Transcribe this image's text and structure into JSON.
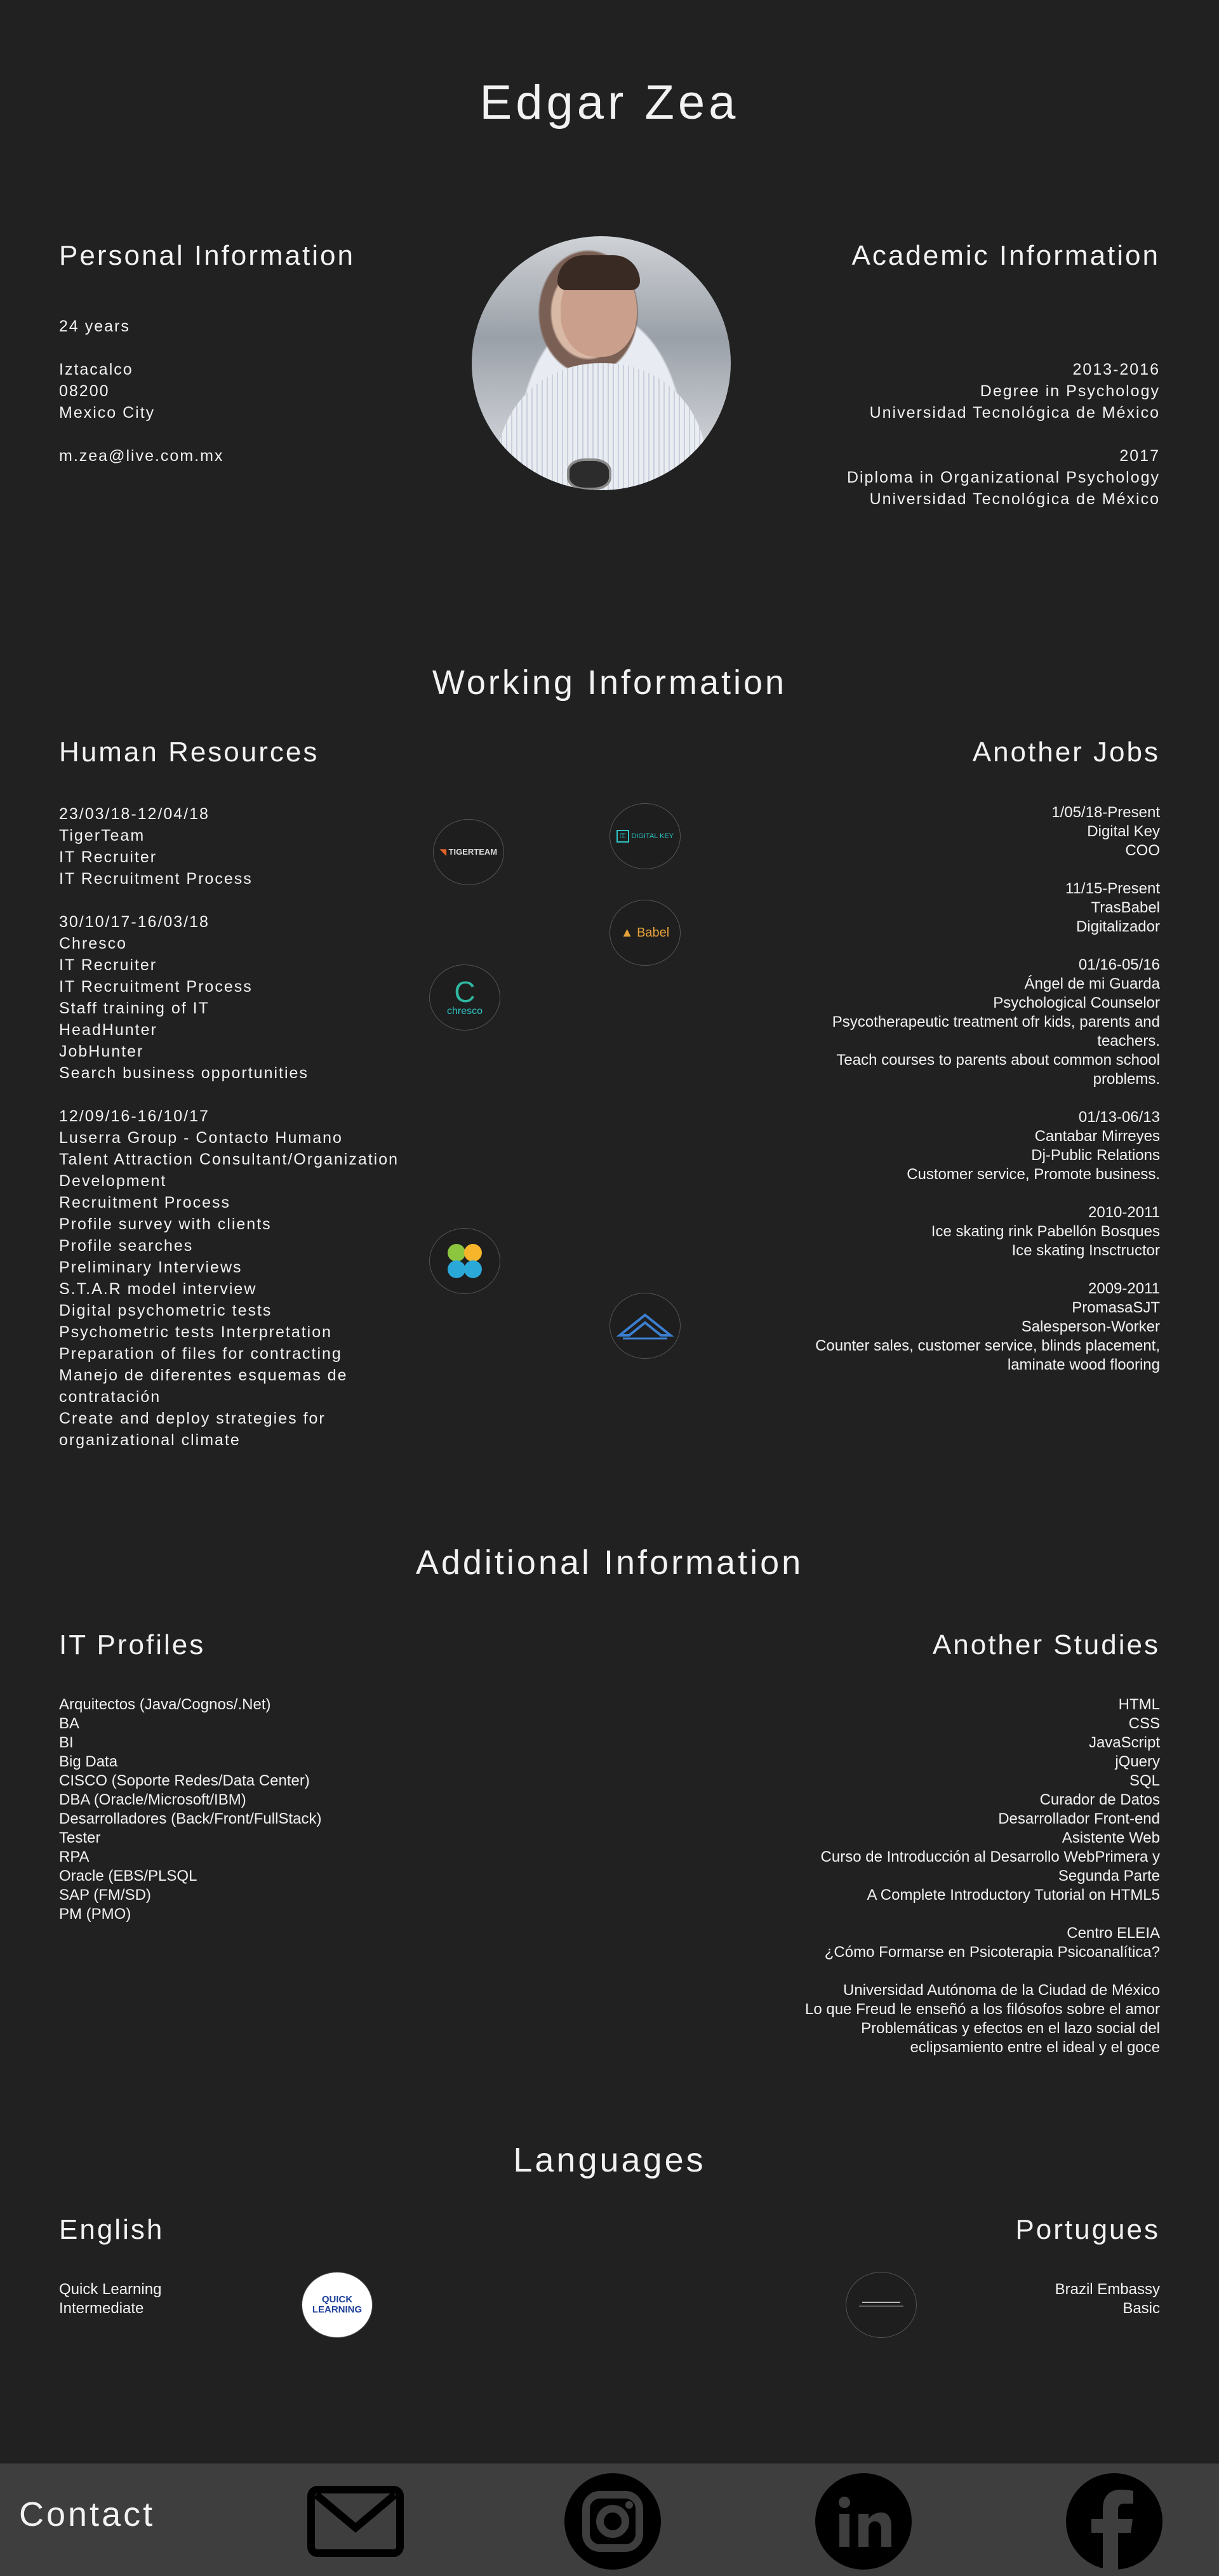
{
  "header": {
    "name": "Edgar Zea"
  },
  "personal": {
    "title": "Personal Information",
    "age": "24 years",
    "address": [
      "Iztacalco",
      "08200",
      "Mexico City"
    ],
    "email": "m.zea@live.com.mx"
  },
  "academic": {
    "title": "Academic Information",
    "entries": [
      {
        "years": "2013-2016",
        "degree": "Degree in Psychology",
        "school": "Universidad Tecnológica de México"
      },
      {
        "years": "2017",
        "degree": "Diploma in Organizational Psychology",
        "school": "Universidad Tecnológica de México"
      }
    ]
  },
  "working": {
    "title": "Working Information",
    "hr_title": "Human Resources",
    "hr_jobs": [
      {
        "lines": [
          "23/03/18-12/04/18",
          "TigerTeam",
          "IT Recruiter",
          "IT Recruitment Process"
        ]
      },
      {
        "lines": [
          "30/10/17-16/03/18",
          "Chresco",
          "IT Recruiter",
          "IT Recruitment Process",
          "Staff training of IT",
          "HeadHunter",
          "JobHunter",
          "Search business opportunities"
        ]
      },
      {
        "lines": [
          "12/09/16-16/10/17",
          "Luserra Group - Contacto Humano",
          "Talent Attraction Consultant/Organization",
          "Development",
          "Recruitment Process",
          "Profile survey with clients",
          "Profile searches",
          "Preliminary Interviews",
          "S.T.A.R model interview",
          "Digital psychometric tests",
          "Psychometric tests Interpretation",
          "Preparation of files for contracting",
          "Manejo de diferentes esquemas de",
          "contratación",
          "Create and deploy strategies for",
          "organizational climate"
        ]
      }
    ],
    "other_title": "Another Jobs",
    "other_jobs": [
      {
        "lines": [
          "1/05/18-Present",
          "Digital Key",
          "COO"
        ]
      },
      {
        "lines": [
          "11/15-Present",
          "TrasBabel",
          "Digitalizador"
        ]
      },
      {
        "lines": [
          "01/16-05/16",
          "Ángel de mi Guarda",
          "Psychological Counselor",
          "Psycotherapeutic treatment ofr kids, parents and",
          "teachers.",
          "Teach courses to parents about common school",
          "problems."
        ]
      },
      {
        "lines": [
          "01/13-06/13",
          "Cantabar Mirreyes",
          "Dj-Public Relations",
          "Customer service, Promote business."
        ]
      },
      {
        "lines": [
          "2010-2011",
          "Ice skating rink Pabellón Bosques",
          "Ice skating Insctructor"
        ]
      },
      {
        "lines": [
          "2009-2011",
          "PromasaSJT",
          "Salesperson-Worker",
          "Counter sales, customer service, blinds placement,",
          "laminate wood flooring"
        ]
      }
    ],
    "logos": {
      "tigerteam": "TIGERTEAM",
      "chresco": "chresco",
      "digitalkey": "DIGITAL KEY",
      "babel": "Babel"
    }
  },
  "additional": {
    "title": "Additional Information",
    "it_title": "IT Profiles",
    "it_profiles": [
      "Arquitectos (Java/Cognos/.Net)",
      "BA",
      "BI",
      "Big Data",
      "CISCO (Soporte Redes/Data Center)",
      "DBA (Oracle/Microsoft/IBM)",
      "Desarrolladores (Back/Front/FullStack)",
      "Tester",
      "RPA",
      "Oracle (EBS/PLSQL",
      "SAP (FM/SD)",
      "PM (PMO)"
    ],
    "studies_title": "Another Studies",
    "studies_groups": [
      [
        "HTML",
        "CSS",
        "JavaScript",
        "jQuery",
        "SQL",
        "Curador de Datos",
        "Desarrollador Front-end",
        "Asistente Web",
        "Curso de Introducción al Desarrollo WebPrimera y",
        "Segunda Parte",
        "A Complete Introductory Tutorial on HTML5"
      ],
      [
        "Centro ELEIA",
        "¿Cómo Formarse en Psicoterapia Psicoanalítica?"
      ],
      [
        "Universidad Autónoma de la Ciudad de México",
        "Lo que Freud le enseñó a los filósofos sobre el amor",
        "Problemáticas y efectos en el lazo social del",
        "eclipsamiento entre el ideal y el goce"
      ]
    ]
  },
  "languages": {
    "title": "Languages",
    "english_title": "English",
    "english": [
      "Quick Learning",
      "Intermediate"
    ],
    "english_logo": "QUICK LEARNING",
    "portuguese_title": "Portugues",
    "portuguese": [
      "Brazil Embassy",
      "Basic"
    ]
  },
  "footer": {
    "title": "Contact"
  },
  "colors": {
    "background": "#212121",
    "footer": "#3e3e3e",
    "text": "#f2f2f2"
  }
}
